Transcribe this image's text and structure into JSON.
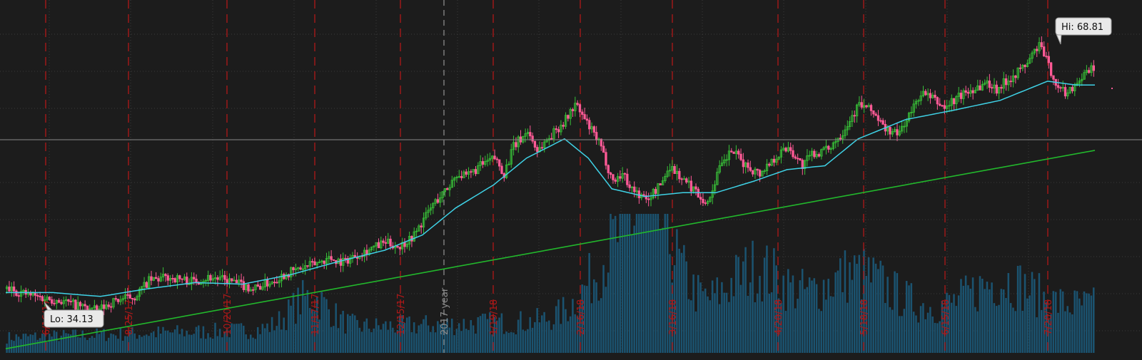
{
  "chart_data": {
    "type": "candlestick",
    "title": "",
    "xlabel": "",
    "ylabel": "",
    "ylim": [
      25,
      75
    ],
    "colors": {
      "background": "#1c1c1c",
      "up": "#38c038",
      "down": "#ff5a96",
      "volume": "#1b5370",
      "ma_short": "#3fd2e6",
      "ma_long": "#22b82c",
      "date_markers": "#b01818",
      "year_marker": "#8a8a8a"
    },
    "date_labels": [
      "6/16/17",
      "8/25/17",
      "10/20/17",
      "11/17/17",
      "12/15/17",
      "1/19/18",
      "2/16/18",
      "3/16/18",
      "4/20/18",
      "5/18/18",
      "6/15/18",
      "7/20/18"
    ],
    "year_label": "2017 year",
    "hi_label": "Hi: 68.81",
    "lo_label": "Lo: 34.13",
    "hi": 68.81,
    "lo": 34.13,
    "price_path": [
      [
        0,
        37.0
      ],
      [
        12,
        36.0
      ],
      [
        22,
        35.5
      ],
      [
        30,
        34.8
      ],
      [
        38,
        34.13
      ],
      [
        46,
        35.5
      ],
      [
        54,
        36.0
      ],
      [
        60,
        38.0
      ],
      [
        68,
        38.5
      ],
      [
        78,
        38.0
      ],
      [
        86,
        38.5
      ],
      [
        94,
        38.0
      ],
      [
        104,
        37.0
      ],
      [
        112,
        38.0
      ],
      [
        118,
        39.0
      ],
      [
        128,
        40.0
      ],
      [
        136,
        41.0
      ],
      [
        142,
        40.5
      ],
      [
        148,
        41.5
      ],
      [
        152,
        42.0
      ],
      [
        160,
        43.0
      ],
      [
        166,
        42.5
      ],
      [
        172,
        44.0
      ],
      [
        176,
        46.0
      ],
      [
        180,
        48.0
      ],
      [
        186,
        50.0
      ],
      [
        190,
        52.0
      ],
      [
        194,
        51.5
      ],
      [
        200,
        53.0
      ],
      [
        206,
        54.0
      ],
      [
        210,
        52.0
      ],
      [
        214,
        55.5
      ],
      [
        220,
        57.5
      ],
      [
        224,
        55.0
      ],
      [
        230,
        57.0
      ],
      [
        236,
        59.0
      ],
      [
        240,
        61.0
      ],
      [
        244,
        59.0
      ],
      [
        250,
        56.0
      ],
      [
        256,
        51.0
      ],
      [
        260,
        52.0
      ],
      [
        264,
        50.0
      ],
      [
        270,
        48.5
      ],
      [
        276,
        50.5
      ],
      [
        280,
        53.0
      ],
      [
        286,
        51.0
      ],
      [
        290,
        50.0
      ],
      [
        296,
        48.0
      ],
      [
        300,
        52.0
      ],
      [
        306,
        55.0
      ],
      [
        312,
        53.0
      ],
      [
        318,
        52.0
      ],
      [
        324,
        54.0
      ],
      [
        330,
        55.5
      ],
      [
        336,
        53.0
      ],
      [
        340,
        54.5
      ],
      [
        346,
        55.0
      ],
      [
        352,
        57.0
      ],
      [
        360,
        61.0
      ],
      [
        366,
        60.0
      ],
      [
        370,
        58.0
      ],
      [
        376,
        57.0
      ],
      [
        382,
        60.0
      ],
      [
        386,
        62.5
      ],
      [
        392,
        61.5
      ],
      [
        396,
        60.5
      ],
      [
        402,
        62.0
      ],
      [
        408,
        63.0
      ],
      [
        414,
        63.8
      ],
      [
        418,
        63.0
      ],
      [
        424,
        64.5
      ],
      [
        430,
        66.0
      ],
      [
        436,
        68.81
      ],
      [
        440,
        66.0
      ],
      [
        444,
        63.0
      ],
      [
        448,
        62.5
      ],
      [
        452,
        64.0
      ],
      [
        456,
        65.0
      ],
      [
        460,
        66.0
      ]
    ],
    "ma_short_path": [
      [
        0,
        36.5
      ],
      [
        20,
        36.5
      ],
      [
        40,
        36.0
      ],
      [
        60,
        37.0
      ],
      [
        80,
        37.8
      ],
      [
        100,
        37.6
      ],
      [
        120,
        38.8
      ],
      [
        140,
        40.5
      ],
      [
        160,
        42.0
      ],
      [
        176,
        44.0
      ],
      [
        190,
        47.5
      ],
      [
        206,
        50.5
      ],
      [
        220,
        54.0
      ],
      [
        236,
        56.5
      ],
      [
        246,
        54.0
      ],
      [
        256,
        50.0
      ],
      [
        270,
        49.0
      ],
      [
        286,
        49.5
      ],
      [
        300,
        49.5
      ],
      [
        316,
        51.0
      ],
      [
        330,
        52.5
      ],
      [
        346,
        53.0
      ],
      [
        360,
        56.5
      ],
      [
        380,
        59.0
      ],
      [
        400,
        60.2
      ],
      [
        420,
        61.5
      ],
      [
        440,
        64.0
      ],
      [
        452,
        63.5
      ],
      [
        460,
        63.5
      ]
    ],
    "ma_long_path": [
      [
        0,
        29.2
      ],
      [
        460,
        55.0
      ]
    ],
    "volume_baseline": 25
  }
}
